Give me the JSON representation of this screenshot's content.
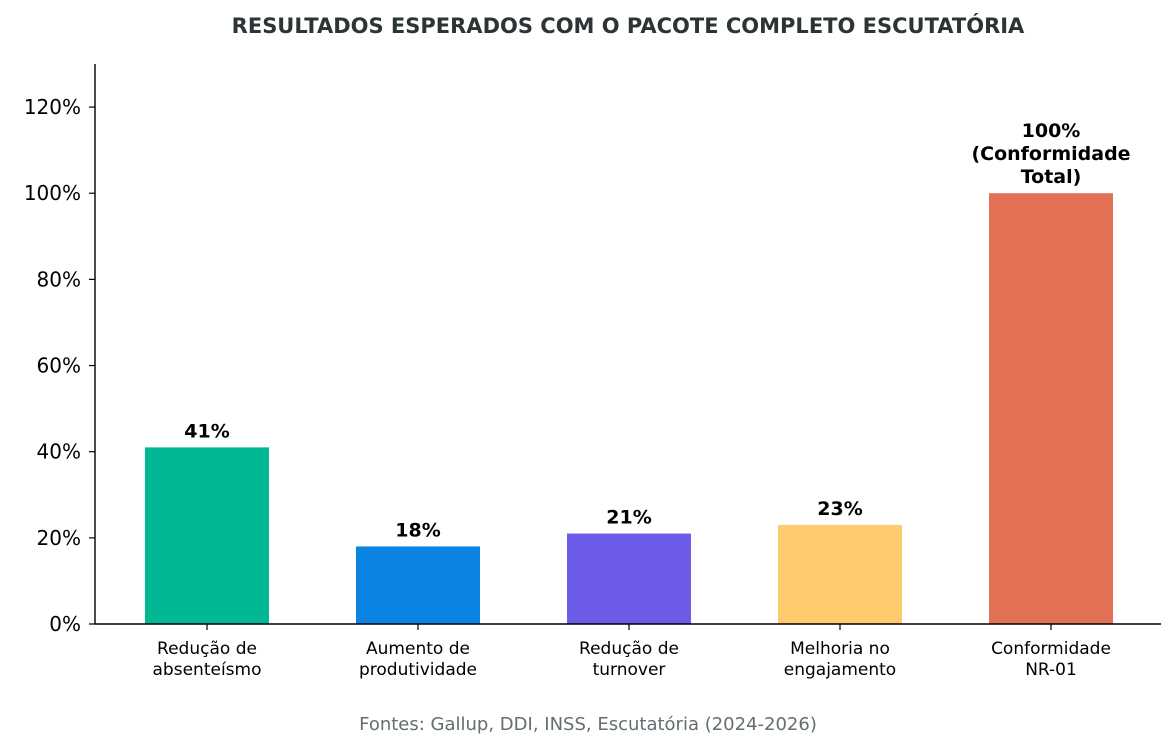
{
  "chart_data": {
    "type": "bar",
    "title": "RESULTADOS ESPERADOS COM O PACOTE COMPLETO ESCUTATÓRIA",
    "xlabel": "",
    "ylabel": "",
    "categories": [
      [
        "Redução de",
        "absenteísmo"
      ],
      [
        "Aumento de",
        "produtividade"
      ],
      [
        "Redução de",
        "turnover"
      ],
      [
        "Melhoria no",
        "engajamento"
      ],
      [
        "Conformidade",
        "NR-01"
      ]
    ],
    "values": [
      41,
      18,
      21,
      23,
      100
    ],
    "data_labels": [
      [
        "41%"
      ],
      [
        "18%"
      ],
      [
        "21%"
      ],
      [
        "23%"
      ],
      [
        "100%",
        "(Conformidade",
        "Total)"
      ]
    ],
    "colors": [
      "#00b894",
      "#0984e3",
      "#6c5ce7",
      "#fdcb6e",
      "#e17055"
    ],
    "ylim": [
      0,
      130
    ],
    "yticks": [
      0,
      20,
      40,
      60,
      80,
      100,
      120
    ],
    "ytick_format": "percent",
    "grid": false,
    "legend": "none",
    "source": "Fontes: Gallup, DDI, INSS, Escutatória (2024-2026)"
  }
}
